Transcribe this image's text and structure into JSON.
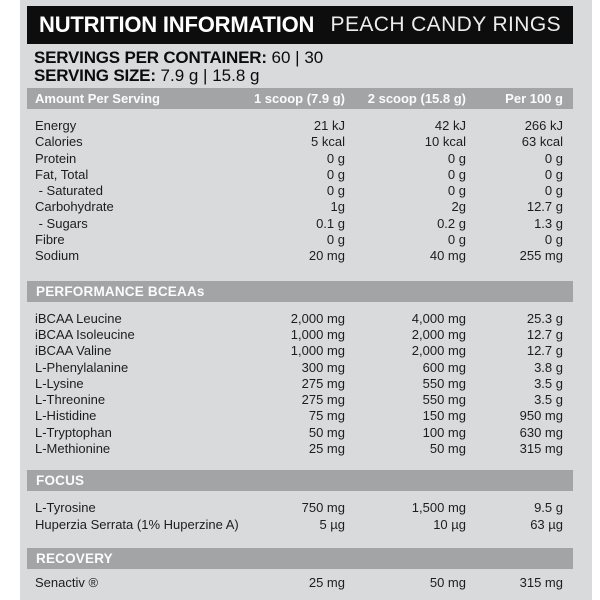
{
  "title_bar": {
    "title": "NUTRITION INFORMATION",
    "subtitle": "PEACH CANDY RINGS"
  },
  "serving_info": {
    "servings_per_container_label": "SERVINGS PER CONTAINER:",
    "servings_per_container_value": "60 | 30",
    "serving_size_label": "SERVING SIZE:",
    "serving_size_value": "7.9 g | 15.8 g"
  },
  "table": {
    "columns": {
      "amount_label": "Amount Per Serving",
      "col1": "1 scoop (7.9 g)",
      "col2": "2 scoop (15.8 g)",
      "col3": "Per 100 g"
    },
    "nutrition_rows": [
      {
        "name": "Energy",
        "col1": "21 kJ",
        "col2": "42 kJ",
        "col3": "266 kJ"
      },
      {
        "name": "Calories",
        "col1": "5 kcal",
        "col2": "10 kcal",
        "col3": "63 kcal"
      },
      {
        "name": "Protein",
        "col1": "0 g",
        "col2": "0 g",
        "col3": "0 g"
      },
      {
        "name": "Fat, Total",
        "col1": "0 g",
        "col2": "0 g",
        "col3": "0 g"
      },
      {
        "name": " - Saturated",
        "col1": "0 g",
        "col2": "0 g",
        "col3": "0 g"
      },
      {
        "name": "Carbohydrate",
        "col1": "1g",
        "col2": "2g",
        "col3": "12.7 g"
      },
      {
        "name": " - Sugars",
        "col1": "0.1 g",
        "col2": "0.2 g",
        "col3": "1.3 g"
      },
      {
        "name": "Fibre",
        "col1": "0 g",
        "col2": "0 g",
        "col3": "0 g"
      },
      {
        "name": "Sodium",
        "col1": "20 mg",
        "col2": "40 mg",
        "col3": "255 mg"
      }
    ],
    "performance_header": "PERFORMANCE BCEAAs",
    "performance_rows": [
      {
        "name": "iBCAA Leucine",
        "col1": "2,000 mg",
        "col2": "4,000 mg",
        "col3": "25.3 g"
      },
      {
        "name": "iBCAA Isoleucine",
        "col1": "1,000 mg",
        "col2": "2,000 mg",
        "col3": "12.7 g"
      },
      {
        "name": "iBCAA Valine",
        "col1": "1,000 mg",
        "col2": "2,000 mg",
        "col3": "12.7 g"
      },
      {
        "name": "L-Phenylalanine",
        "col1": "300 mg",
        "col2": "600 mg",
        "col3": "3.8 g"
      },
      {
        "name": "L-Lysine",
        "col1": "275 mg",
        "col2": "550 mg",
        "col3": "3.5 g"
      },
      {
        "name": "L-Threonine",
        "col1": "275 mg",
        "col2": "550 mg",
        "col3": "3.5 g"
      },
      {
        "name": "L-Histidine",
        "col1": "75 mg",
        "col2": "150 mg",
        "col3": "950 mg"
      },
      {
        "name": "L-Tryptophan",
        "col1": "50 mg",
        "col2": "100 mg",
        "col3": "630 mg"
      },
      {
        "name": "L-Methionine",
        "col1": "25 mg",
        "col2": "50 mg",
        "col3": "315 mg"
      }
    ],
    "focus_header": "FOCUS",
    "focus_rows": [
      {
        "name": "L-Tyrosine",
        "col1": "750 mg",
        "col2": "1,500 mg",
        "col3": "9.5 g"
      },
      {
        "name": "Huperzia Serrata (1% Huperzine A)",
        "col1": "5 µg",
        "col2": "10 µg",
        "col3": "63 µg"
      }
    ],
    "recovery_header": "RECOVERY",
    "recovery_rows": [
      {
        "name": "Senactiv ®",
        "col1": "25 mg",
        "col2": "50 mg",
        "col3": "315 mg"
      }
    ]
  },
  "colors": {
    "page_bg": "#ffffff",
    "panel_bg": "#d9dadb",
    "title_bar_bg": "#0d0d0e",
    "section_bar_bg": "#a3a4a6",
    "bar_text": "#fbfbfc",
    "body_text": "#1d1d1e"
  }
}
